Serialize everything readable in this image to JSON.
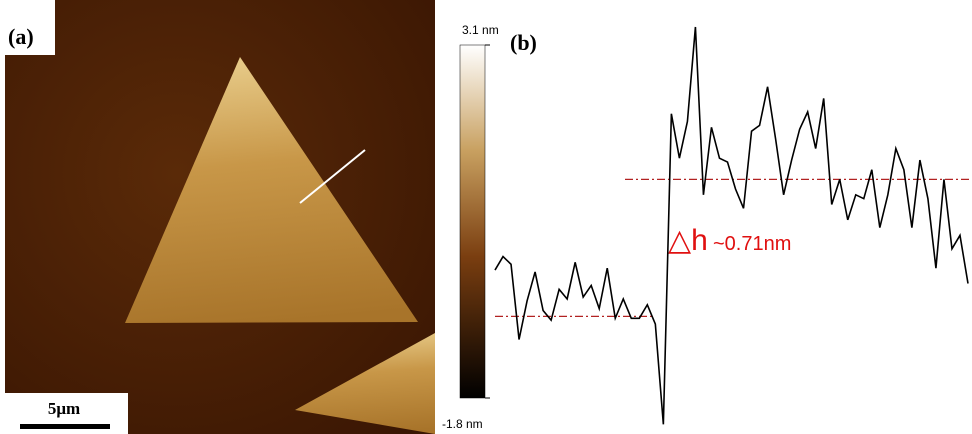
{
  "panel_a": {
    "label": "(a)",
    "colorbar": {
      "max": {
        "value": 3.1,
        "label": "3.1 nm"
      },
      "min": {
        "value": -1.8,
        "label": "-1.8 nm"
      }
    },
    "scale_bar": "5μm"
  },
  "panel_b": {
    "label": "(b)",
    "step_symbol": "△h",
    "step_text": "~0.71nm",
    "chart_data": {
      "type": "line",
      "color": "#000000",
      "ylim": [
        -0.61,
        1.64
      ],
      "levels": [
        0,
        0.71
      ],
      "level_color": "#b22222",
      "values": [
        0.24,
        0.31,
        0.27,
        -0.12,
        0.08,
        0.23,
        0.03,
        -0.02,
        0.14,
        0.09,
        0.28,
        0.1,
        0.16,
        0.04,
        0.25,
        -0.01,
        0.09,
        -0.01,
        -0.01,
        0.06,
        -0.04,
        -0.56,
        1.05,
        0.82,
        1.01,
        1.5,
        0.63,
        0.98,
        0.82,
        0.8,
        0.66,
        0.56,
        0.96,
        0.99,
        1.19,
        0.92,
        0.63,
        0.81,
        0.97,
        1.06,
        0.87,
        1.13,
        0.58,
        0.71,
        0.5,
        0.63,
        0.61,
        0.76,
        0.46,
        0.63,
        0.87,
        0.76,
        0.46,
        0.81,
        0.61,
        0.25,
        0.71,
        0.35,
        0.42,
        0.17
      ]
    }
  }
}
